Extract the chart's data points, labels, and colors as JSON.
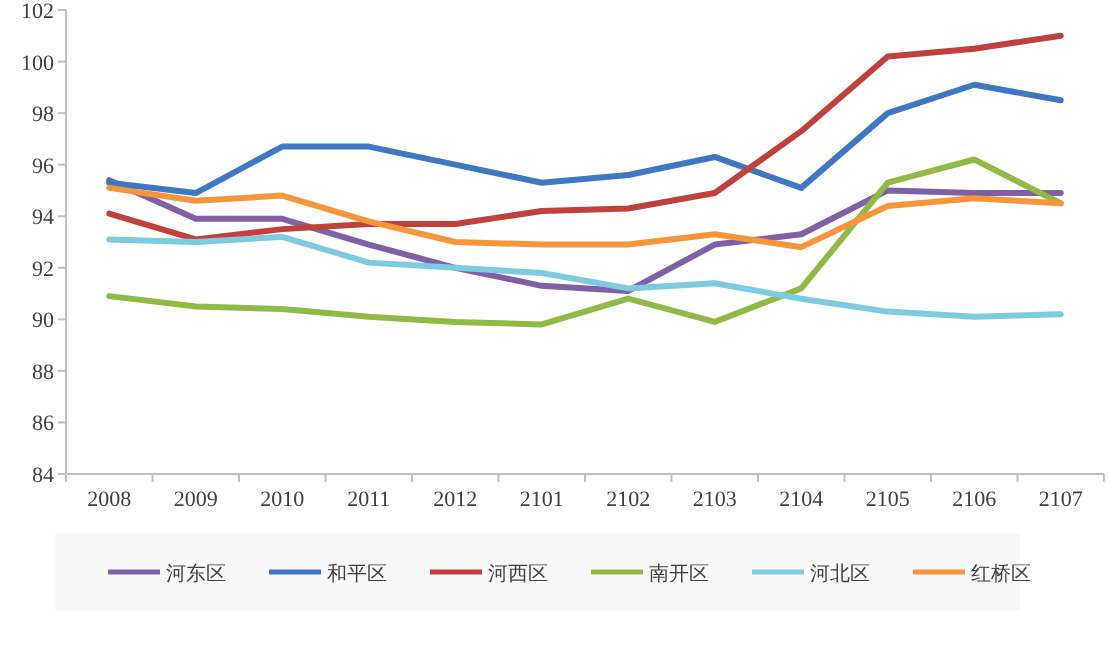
{
  "chart_data": {
    "type": "line",
    "categories": [
      "2008",
      "2009",
      "2010",
      "2011",
      "2012",
      "2101",
      "2102",
      "2103",
      "2104",
      "2105",
      "2106",
      "2107"
    ],
    "series": [
      {
        "name": "河东区",
        "color": "#7f5fa6",
        "values": [
          95.4,
          93.9,
          93.9,
          92.9,
          92.0,
          91.3,
          91.1,
          92.9,
          93.3,
          95.0,
          94.9,
          94.9
        ]
      },
      {
        "name": "和平区",
        "color": "#3f78c2",
        "values": [
          95.3,
          94.9,
          96.7,
          96.7,
          96.0,
          95.3,
          95.6,
          96.3,
          95.1,
          98.0,
          99.1,
          98.5
        ]
      },
      {
        "name": "河西区",
        "color": "#c0403b",
        "values": [
          94.1,
          93.1,
          93.5,
          93.7,
          93.7,
          94.2,
          94.3,
          94.9,
          97.3,
          100.2,
          100.5,
          101.0
        ]
      },
      {
        "name": "南开区",
        "color": "#8fbb45",
        "values": [
          90.9,
          90.5,
          90.4,
          90.1,
          89.9,
          89.8,
          90.8,
          89.9,
          91.2,
          95.3,
          96.2,
          94.5
        ]
      },
      {
        "name": "河北区",
        "color": "#7ccbe0",
        "values": [
          93.1,
          93.0,
          93.2,
          92.2,
          92.0,
          91.8,
          91.2,
          91.4,
          90.8,
          90.3,
          90.1,
          90.2
        ]
      },
      {
        "name": "红桥区",
        "color": "#f7953a",
        "values": [
          95.1,
          94.6,
          94.8,
          93.8,
          93.0,
          92.9,
          92.9,
          93.3,
          92.8,
          94.4,
          94.7,
          94.5
        ]
      }
    ],
    "ylim": [
      84,
      102
    ],
    "yticks": [
      84,
      86,
      88,
      90,
      92,
      94,
      96,
      98,
      100,
      102
    ],
    "grid": false,
    "legend": "bottom",
    "marker": "none",
    "line_style": "solid"
  }
}
